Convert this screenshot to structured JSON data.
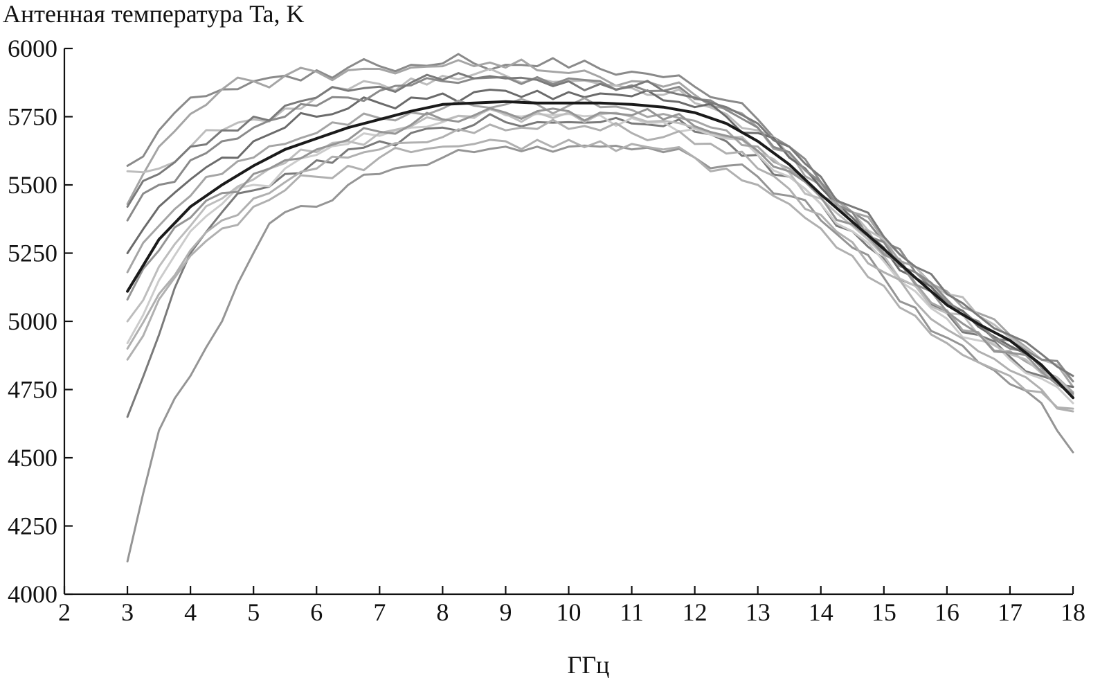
{
  "chart_data": {
    "type": "line",
    "title": "",
    "ylabel": "Антенная температура Ta, K",
    "xlabel": "ГГц",
    "xlim": [
      2,
      18
    ],
    "ylim": [
      4000,
      6000
    ],
    "x_ticks": [
      "2",
      "3",
      "4",
      "5",
      "6",
      "7",
      "8",
      "9",
      "10",
      "11",
      "12",
      "13",
      "14",
      "15",
      "16",
      "17",
      "18"
    ],
    "y_ticks": [
      "4000",
      "4250",
      "4500",
      "4750",
      "5000",
      "5250",
      "5500",
      "5750",
      "6000"
    ],
    "grid": false,
    "legend": "none",
    "colors": {
      "mean": "#1a1a1a",
      "series_palette": [
        "#6b6b6b",
        "#8a8a8a",
        "#a5a5a5",
        "#bdbdbd",
        "#7a7a7a",
        "#959595",
        "#b0b0b0",
        "#cccccc"
      ]
    },
    "x": [
      3,
      3.5,
      4,
      4.5,
      5,
      5.5,
      6,
      6.5,
      7,
      7.5,
      8,
      8.5,
      9,
      9.5,
      10,
      10.5,
      11,
      11.5,
      12,
      12.5,
      13,
      13.5,
      14,
      14.5,
      15,
      15.5,
      16,
      16.5,
      17,
      17.5,
      18
    ],
    "series": [
      {
        "role": "mean",
        "values": [
          5110,
          5300,
          5420,
          5500,
          5570,
          5630,
          5670,
          5710,
          5740,
          5770,
          5795,
          5800,
          5805,
          5800,
          5800,
          5800,
          5795,
          5785,
          5765,
          5725,
          5660,
          5575,
          5465,
          5365,
          5265,
          5160,
          5060,
          4990,
          4930,
          4840,
          4720
        ]
      },
      {
        "values": [
          5570,
          5700,
          5820,
          5850,
          5880,
          5900,
          5920,
          5930,
          5935,
          5940,
          5945,
          5945,
          5940,
          5935,
          5930,
          5925,
          5915,
          5895,
          5860,
          5810,
          5740,
          5640,
          5510,
          5400,
          5290,
          5180,
          5070,
          4990,
          4900,
          4830,
          4730
        ]
      },
      {
        "values": [
          5430,
          5640,
          5760,
          5850,
          5880,
          5900,
          5915,
          5920,
          5925,
          5930,
          5935,
          5935,
          5930,
          5920,
          5910,
          5895,
          5880,
          5860,
          5830,
          5780,
          5710,
          5620,
          5500,
          5400,
          5300,
          5200,
          5110,
          5030,
          4950,
          4860,
          4760
        ]
      },
      {
        "values": [
          5550,
          5560,
          5640,
          5700,
          5740,
          5780,
          5820,
          5850,
          5870,
          5890,
          5900,
          5905,
          5900,
          5890,
          5880,
          5870,
          5855,
          5830,
          5800,
          5760,
          5700,
          5610,
          5500,
          5400,
          5300,
          5200,
          5100,
          5020,
          4940,
          4860,
          4780
        ]
      },
      {
        "values": [
          4650,
          4950,
          5250,
          5400,
          5480,
          5540,
          5590,
          5630,
          5660,
          5690,
          5710,
          5720,
          5730,
          5730,
          5730,
          5730,
          5725,
          5715,
          5695,
          5660,
          5610,
          5530,
          5430,
          5330,
          5230,
          5130,
          5030,
          4950,
          4870,
          4800,
          4720
        ]
      },
      {
        "values": [
          4120,
          4600,
          4800,
          5000,
          5250,
          5400,
          5420,
          5500,
          5540,
          5570,
          5600,
          5620,
          5640,
          5640,
          5640,
          5640,
          5630,
          5620,
          5600,
          5570,
          5530,
          5460,
          5370,
          5270,
          5160,
          5050,
          4940,
          4850,
          4770,
          4700,
          4520
        ]
      },
      {
        "values": [
          4860,
          5080,
          5240,
          5340,
          5420,
          5480,
          5530,
          5570,
          5600,
          5620,
          5640,
          5650,
          5660,
          5665,
          5665,
          5660,
          5650,
          5630,
          5600,
          5560,
          5500,
          5430,
          5340,
          5240,
          5130,
          5020,
          4920,
          4850,
          4800,
          4740,
          4680
        ]
      },
      {
        "values": [
          4920,
          5150,
          5330,
          5430,
          5500,
          5560,
          5610,
          5650,
          5680,
          5710,
          5730,
          5745,
          5755,
          5760,
          5760,
          5755,
          5745,
          5730,
          5705,
          5670,
          5610,
          5530,
          5430,
          5330,
          5220,
          5110,
          5010,
          4930,
          4860,
          4790,
          4700
        ]
      },
      {
        "values": [
          5250,
          5420,
          5520,
          5600,
          5660,
          5710,
          5750,
          5780,
          5800,
          5820,
          5835,
          5840,
          5845,
          5845,
          5840,
          5835,
          5825,
          5810,
          5785,
          5750,
          5690,
          5600,
          5490,
          5380,
          5270,
          5160,
          5060,
          4980,
          4910,
          4840,
          4760
        ]
      },
      {
        "values": [
          5370,
          5500,
          5590,
          5660,
          5710,
          5750,
          5790,
          5820,
          5845,
          5865,
          5880,
          5890,
          5895,
          5895,
          5890,
          5880,
          5865,
          5845,
          5815,
          5775,
          5710,
          5620,
          5510,
          5400,
          5290,
          5180,
          5080,
          5000,
          4930,
          4860,
          4780
        ]
      },
      {
        "values": [
          5180,
          5350,
          5460,
          5540,
          5600,
          5650,
          5690,
          5720,
          5745,
          5765,
          5780,
          5790,
          5795,
          5795,
          5790,
          5785,
          5775,
          5760,
          5735,
          5700,
          5640,
          5560,
          5460,
          5360,
          5250,
          5140,
          5040,
          4960,
          4890,
          4820,
          4740
        ]
      },
      {
        "values": [
          5000,
          5200,
          5350,
          5450,
          5520,
          5580,
          5620,
          5660,
          5690,
          5715,
          5735,
          5750,
          5760,
          5765,
          5765,
          5760,
          5750,
          5735,
          5710,
          5675,
          5620,
          5545,
          5450,
          5350,
          5240,
          5130,
          5030,
          4950,
          4880,
          4810,
          4730
        ]
      },
      {
        "values": [
          5420,
          5540,
          5640,
          5700,
          5750,
          5790,
          5820,
          5845,
          5860,
          5875,
          5885,
          5890,
          5890,
          5885,
          5880,
          5870,
          5860,
          5845,
          5820,
          5785,
          5725,
          5640,
          5530,
          5420,
          5310,
          5200,
          5100,
          5020,
          4950,
          4880,
          4800
        ]
      },
      {
        "values": [
          5080,
          5260,
          5380,
          5470,
          5540,
          5590,
          5630,
          5665,
          5695,
          5720,
          5740,
          5755,
          5765,
          5770,
          5770,
          5765,
          5755,
          5740,
          5715,
          5680,
          5625,
          5550,
          5455,
          5355,
          5245,
          5135,
          5035,
          4955,
          4885,
          4815,
          4735
        ]
      },
      {
        "values": [
          4900,
          5100,
          5260,
          5370,
          5450,
          5510,
          5560,
          5600,
          5630,
          5655,
          5675,
          5690,
          5700,
          5705,
          5705,
          5700,
          5690,
          5675,
          5650,
          5615,
          5560,
          5485,
          5390,
          5290,
          5180,
          5070,
          4970,
          4890,
          4820,
          4750,
          4670
        ]
      }
    ]
  }
}
